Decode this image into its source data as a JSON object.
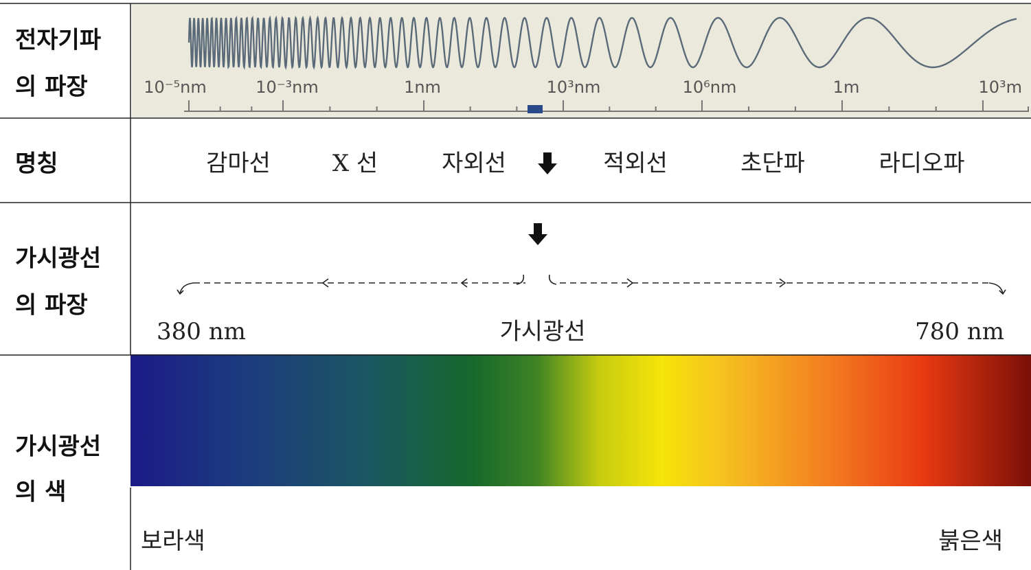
{
  "rows": [
    {
      "label": [
        "전자기파",
        "의 파장"
      ],
      "scale": [
        "10⁻⁵nm",
        "10⁻³nm",
        "1nm",
        "10³nm",
        "10⁶nm",
        "1m",
        "10³m"
      ]
    },
    {
      "label": [
        "명칭"
      ],
      "names": [
        "감마선",
        "X 선",
        "자외선",
        "적외선",
        "초단파",
        "라디오파"
      ]
    },
    {
      "label": [
        "가시광선",
        "의 파장"
      ],
      "start": "380 nm",
      "middle": "가시광선",
      "end": "780 nm"
    },
    {
      "label": [
        "가시광선",
        "의 색"
      ],
      "start": "보라색",
      "end": "붉은색"
    }
  ]
}
